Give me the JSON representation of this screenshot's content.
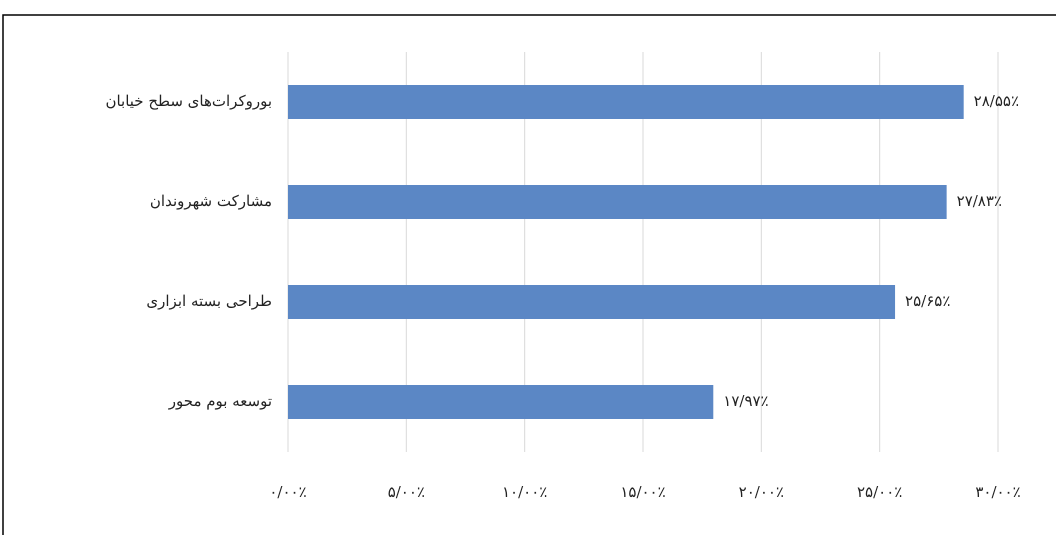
{
  "chart_data": {
    "type": "hbar",
    "categories": [
      "بوروکرات‌های سطح خیابان",
      "مشارکت شهروندان",
      "طراحی بسته ابزاری",
      "توسعه بوم محور"
    ],
    "values": [
      28.55,
      27.83,
      25.65,
      17.97
    ],
    "value_labels": [
      "۲۸/۵۵٪",
      "۲۷/۸۳٪",
      "۲۵/۶۵٪",
      "۱۷/۹۷٪"
    ],
    "color": "#5b87c5",
    "xlim": [
      0,
      30
    ],
    "xticks": [
      {
        "value": 0,
        "label": "۰/۰۰٪"
      },
      {
        "value": 5,
        "label": "۵/۰۰٪"
      },
      {
        "value": 10,
        "label": "۱۰/۰۰٪"
      },
      {
        "value": 15,
        "label": "۱۵/۰۰٪"
      },
      {
        "value": 20,
        "label": "۲۰/۰۰٪"
      },
      {
        "value": 25,
        "label": "۲۵/۰۰٪"
      },
      {
        "value": 30,
        "label": "۳۰/۰۰٪"
      }
    ],
    "grid": true
  }
}
